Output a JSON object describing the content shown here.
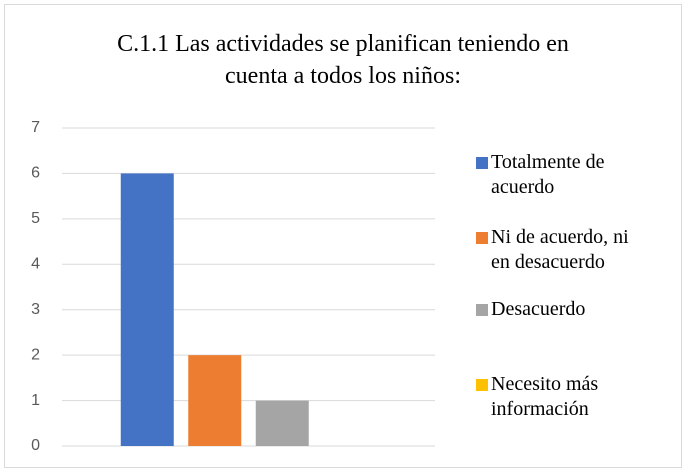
{
  "chart_data": {
    "type": "bar",
    "title": "C.1.1 Las actividades se planifican teniendo en cuenta a todos los niños:",
    "categories": [
      null
    ],
    "series": [
      {
        "name": "Totalmente de acuerdo",
        "color": "#4472c4",
        "values": [
          6
        ]
      },
      {
        "name": "Ni de acuerdo, ni en desacuerdo",
        "color": "#ed7d31",
        "values": [
          2
        ]
      },
      {
        "name": "Desacuerdo",
        "color": "#a5a5a5",
        "values": [
          1
        ]
      },
      {
        "name": "Necesito más información",
        "color": "#ffc000",
        "values": [
          0
        ]
      }
    ],
    "ylim": [
      0,
      7
    ],
    "yticks": [
      0,
      1,
      2,
      3,
      4,
      5,
      6,
      7
    ],
    "grid": true,
    "legend": "right"
  }
}
